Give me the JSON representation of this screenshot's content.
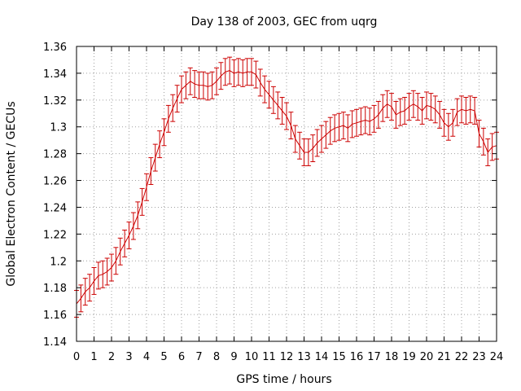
{
  "chart_data": {
    "type": "line",
    "title": "Day 138 of 2003, GEC from uqrg",
    "xlabel": "GPS time / hours",
    "ylabel": "Global Electron Content / GECUs",
    "xlim": [
      0,
      24
    ],
    "ylim": [
      1.14,
      1.36
    ],
    "x_ticks": [
      0,
      1,
      2,
      3,
      4,
      5,
      6,
      7,
      8,
      9,
      10,
      11,
      12,
      13,
      14,
      15,
      16,
      17,
      18,
      19,
      20,
      21,
      22,
      23,
      24
    ],
    "y_ticks": [
      1.14,
      1.16,
      1.18,
      1.2,
      1.22,
      1.24,
      1.26,
      1.28,
      1.3,
      1.32,
      1.34,
      1.36
    ],
    "y_tick_labels": [
      "1.14",
      "1.16",
      "1.18",
      "1.2",
      "1.22",
      "1.24",
      "1.26",
      "1.28",
      "1.3",
      "1.32",
      "1.34",
      "1.36"
    ],
    "grid": true,
    "legend": "none",
    "series_color": "#cc0000",
    "error_bar": 0.01,
    "series": [
      {
        "x": [
          0.0,
          0.25,
          0.5,
          0.75,
          1.0,
          1.25,
          1.5,
          1.75,
          2.0,
          2.25,
          2.5,
          2.75,
          3.0,
          3.25,
          3.5,
          3.75,
          4.0,
          4.25,
          4.5,
          4.75,
          5.0,
          5.25,
          5.5,
          5.75,
          6.0,
          6.25,
          6.5,
          6.75,
          7.0,
          7.25,
          7.5,
          7.75,
          8.0,
          8.25,
          8.5,
          8.75,
          9.0,
          9.25,
          9.5,
          9.75,
          10.0,
          10.25,
          10.5,
          10.75,
          11.0,
          11.25,
          11.5,
          11.75,
          12.0,
          12.25,
          12.5,
          12.75,
          13.0,
          13.25,
          13.5,
          13.75,
          14.0,
          14.25,
          14.5,
          14.75,
          15.0,
          15.25,
          15.5,
          15.75,
          16.0,
          16.25,
          16.5,
          16.75,
          17.0,
          17.25,
          17.5,
          17.75,
          18.0,
          18.25,
          18.5,
          18.75,
          19.0,
          19.25,
          19.5,
          19.75,
          20.0,
          20.25,
          20.5,
          20.75,
          21.0,
          21.25,
          21.5,
          21.75,
          22.0,
          22.25,
          22.5,
          22.75,
          23.0,
          23.25,
          23.5,
          23.75,
          24.0
        ],
        "y": [
          1.168,
          1.172,
          1.177,
          1.18,
          1.185,
          1.189,
          1.19,
          1.192,
          1.195,
          1.2,
          1.207,
          1.213,
          1.219,
          1.226,
          1.234,
          1.244,
          1.255,
          1.267,
          1.277,
          1.287,
          1.296,
          1.306,
          1.314,
          1.321,
          1.328,
          1.331,
          1.334,
          1.332,
          1.331,
          1.331,
          1.33,
          1.331,
          1.334,
          1.338,
          1.341,
          1.342,
          1.34,
          1.341,
          1.34,
          1.341,
          1.341,
          1.339,
          1.333,
          1.328,
          1.324,
          1.32,
          1.316,
          1.312,
          1.308,
          1.301,
          1.291,
          1.286,
          1.281,
          1.281,
          1.284,
          1.288,
          1.291,
          1.294,
          1.297,
          1.299,
          1.3,
          1.301,
          1.299,
          1.302,
          1.303,
          1.304,
          1.305,
          1.304,
          1.306,
          1.309,
          1.314,
          1.317,
          1.315,
          1.309,
          1.311,
          1.312,
          1.315,
          1.317,
          1.315,
          1.312,
          1.316,
          1.315,
          1.313,
          1.309,
          1.303,
          1.3,
          1.303,
          1.311,
          1.313,
          1.312,
          1.313,
          1.312,
          1.295,
          1.289,
          1.281,
          1.285,
          1.286
        ]
      }
    ]
  }
}
